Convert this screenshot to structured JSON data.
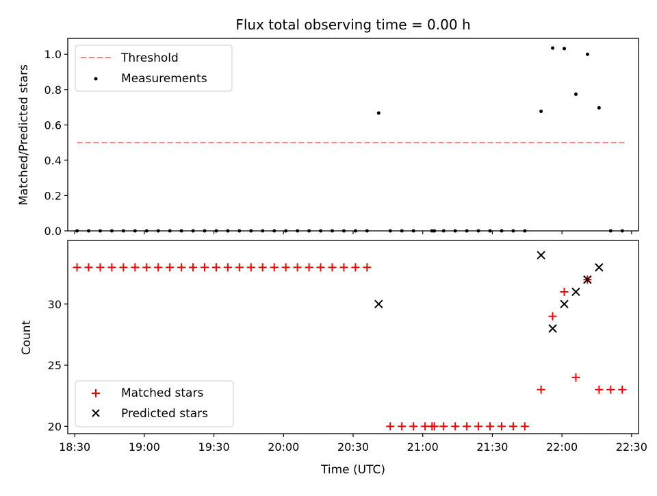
{
  "figure": {
    "title": "Flux total observing time = 0.00 h",
    "xlabel": "Time (UTC)",
    "xticks": [
      "18:30",
      "19:00",
      "19:30",
      "20:00",
      "20:30",
      "21:00",
      "21:30",
      "22:00",
      "22:30"
    ]
  },
  "chart_data": [
    {
      "type": "scatter",
      "ylabel": "Matched/Predicted stars",
      "xlim": [
        "18:27",
        "22:33"
      ],
      "ylim": [
        0,
        1.09
      ],
      "yticks": [
        "0.0",
        "0.2",
        "0.4",
        "0.6",
        "0.8",
        "1.0"
      ],
      "legend_position": "upper-left",
      "threshold": {
        "name": "Threshold",
        "value": 0.5,
        "x_start": "18:31",
        "x_end": "22:27",
        "color": "#ff7f7f"
      },
      "series": [
        {
          "name": "Measurements",
          "color": "#000000",
          "marker": "dot",
          "points": [
            [
              "18:31",
              0
            ],
            [
              "18:36",
              0
            ],
            [
              "18:41",
              0
            ],
            [
              "18:46",
              0
            ],
            [
              "18:51",
              0
            ],
            [
              "18:56",
              0
            ],
            [
              "19:01",
              0
            ],
            [
              "19:06",
              0
            ],
            [
              "19:11",
              0
            ],
            [
              "19:16",
              0
            ],
            [
              "19:21",
              0
            ],
            [
              "19:26",
              0
            ],
            [
              "19:31",
              0
            ],
            [
              "19:36",
              0
            ],
            [
              "19:41",
              0
            ],
            [
              "19:46",
              0
            ],
            [
              "19:51",
              0
            ],
            [
              "19:56",
              0
            ],
            [
              "20:01",
              0
            ],
            [
              "20:06",
              0
            ],
            [
              "20:11",
              0
            ],
            [
              "20:16",
              0
            ],
            [
              "20:21",
              0
            ],
            [
              "20:26",
              0
            ],
            [
              "20:31",
              0
            ],
            [
              "20:36",
              0
            ],
            [
              "20:41",
              0.667
            ],
            [
              "20:46",
              0
            ],
            [
              "20:51",
              0
            ],
            [
              "20:56",
              0
            ],
            [
              "21:04",
              0
            ],
            [
              "21:05",
              0
            ],
            [
              "21:09",
              0
            ],
            [
              "21:14",
              0
            ],
            [
              "21:19",
              0
            ],
            [
              "21:24",
              0
            ],
            [
              "21:29",
              0
            ],
            [
              "21:34",
              0
            ],
            [
              "21:39",
              0
            ],
            [
              "21:44",
              0
            ],
            [
              "21:51",
              0.677
            ],
            [
              "21:56",
              1.035
            ],
            [
              "22:01",
              1.032
            ],
            [
              "22:06",
              0.774
            ],
            [
              "22:11",
              1.0
            ],
            [
              "22:16",
              0.697
            ],
            [
              "22:21",
              0
            ],
            [
              "22:26",
              0
            ]
          ]
        }
      ]
    },
    {
      "type": "scatter",
      "ylabel": "Count",
      "xlim": [
        "18:27",
        "22:33"
      ],
      "ylim": [
        19.4,
        35.2
      ],
      "yticks": [
        "20",
        "25",
        "30"
      ],
      "legend_position": "lower-left",
      "series": [
        {
          "name": "Matched stars",
          "color": "#ff0000",
          "marker": "plus",
          "points": [
            [
              "18:31",
              33
            ],
            [
              "18:36",
              33
            ],
            [
              "18:41",
              33
            ],
            [
              "18:46",
              33
            ],
            [
              "18:51",
              33
            ],
            [
              "18:56",
              33
            ],
            [
              "19:01",
              33
            ],
            [
              "19:06",
              33
            ],
            [
              "19:11",
              33
            ],
            [
              "19:16",
              33
            ],
            [
              "19:21",
              33
            ],
            [
              "19:26",
              33
            ],
            [
              "19:31",
              33
            ],
            [
              "19:36",
              33
            ],
            [
              "19:41",
              33
            ],
            [
              "19:46",
              33
            ],
            [
              "19:51",
              33
            ],
            [
              "19:56",
              33
            ],
            [
              "20:01",
              33
            ],
            [
              "20:06",
              33
            ],
            [
              "20:11",
              33
            ],
            [
              "20:16",
              33
            ],
            [
              "20:21",
              33
            ],
            [
              "20:26",
              33
            ],
            [
              "20:31",
              33
            ],
            [
              "20:36",
              33
            ],
            [
              "20:46",
              20
            ],
            [
              "20:51",
              20
            ],
            [
              "20:56",
              20
            ],
            [
              "21:01",
              20
            ],
            [
              "21:04",
              20
            ],
            [
              "21:05",
              20
            ],
            [
              "21:09",
              20
            ],
            [
              "21:14",
              20
            ],
            [
              "21:19",
              20
            ],
            [
              "21:24",
              20
            ],
            [
              "21:29",
              20
            ],
            [
              "21:34",
              20
            ],
            [
              "21:39",
              20
            ],
            [
              "21:44",
              20
            ],
            [
              "21:51",
              23
            ],
            [
              "21:56",
              29
            ],
            [
              "22:01",
              31
            ],
            [
              "22:06",
              24
            ],
            [
              "22:11",
              32
            ],
            [
              "22:16",
              23
            ],
            [
              "22:21",
              23
            ],
            [
              "22:26",
              23
            ]
          ]
        },
        {
          "name": "Predicted stars",
          "color": "#000000",
          "marker": "x",
          "points": [
            [
              "20:41",
              30
            ],
            [
              "21:51",
              34
            ],
            [
              "21:56",
              28
            ],
            [
              "22:01",
              30
            ],
            [
              "22:06",
              31
            ],
            [
              "22:11",
              32
            ],
            [
              "22:16",
              33
            ]
          ]
        }
      ]
    }
  ]
}
